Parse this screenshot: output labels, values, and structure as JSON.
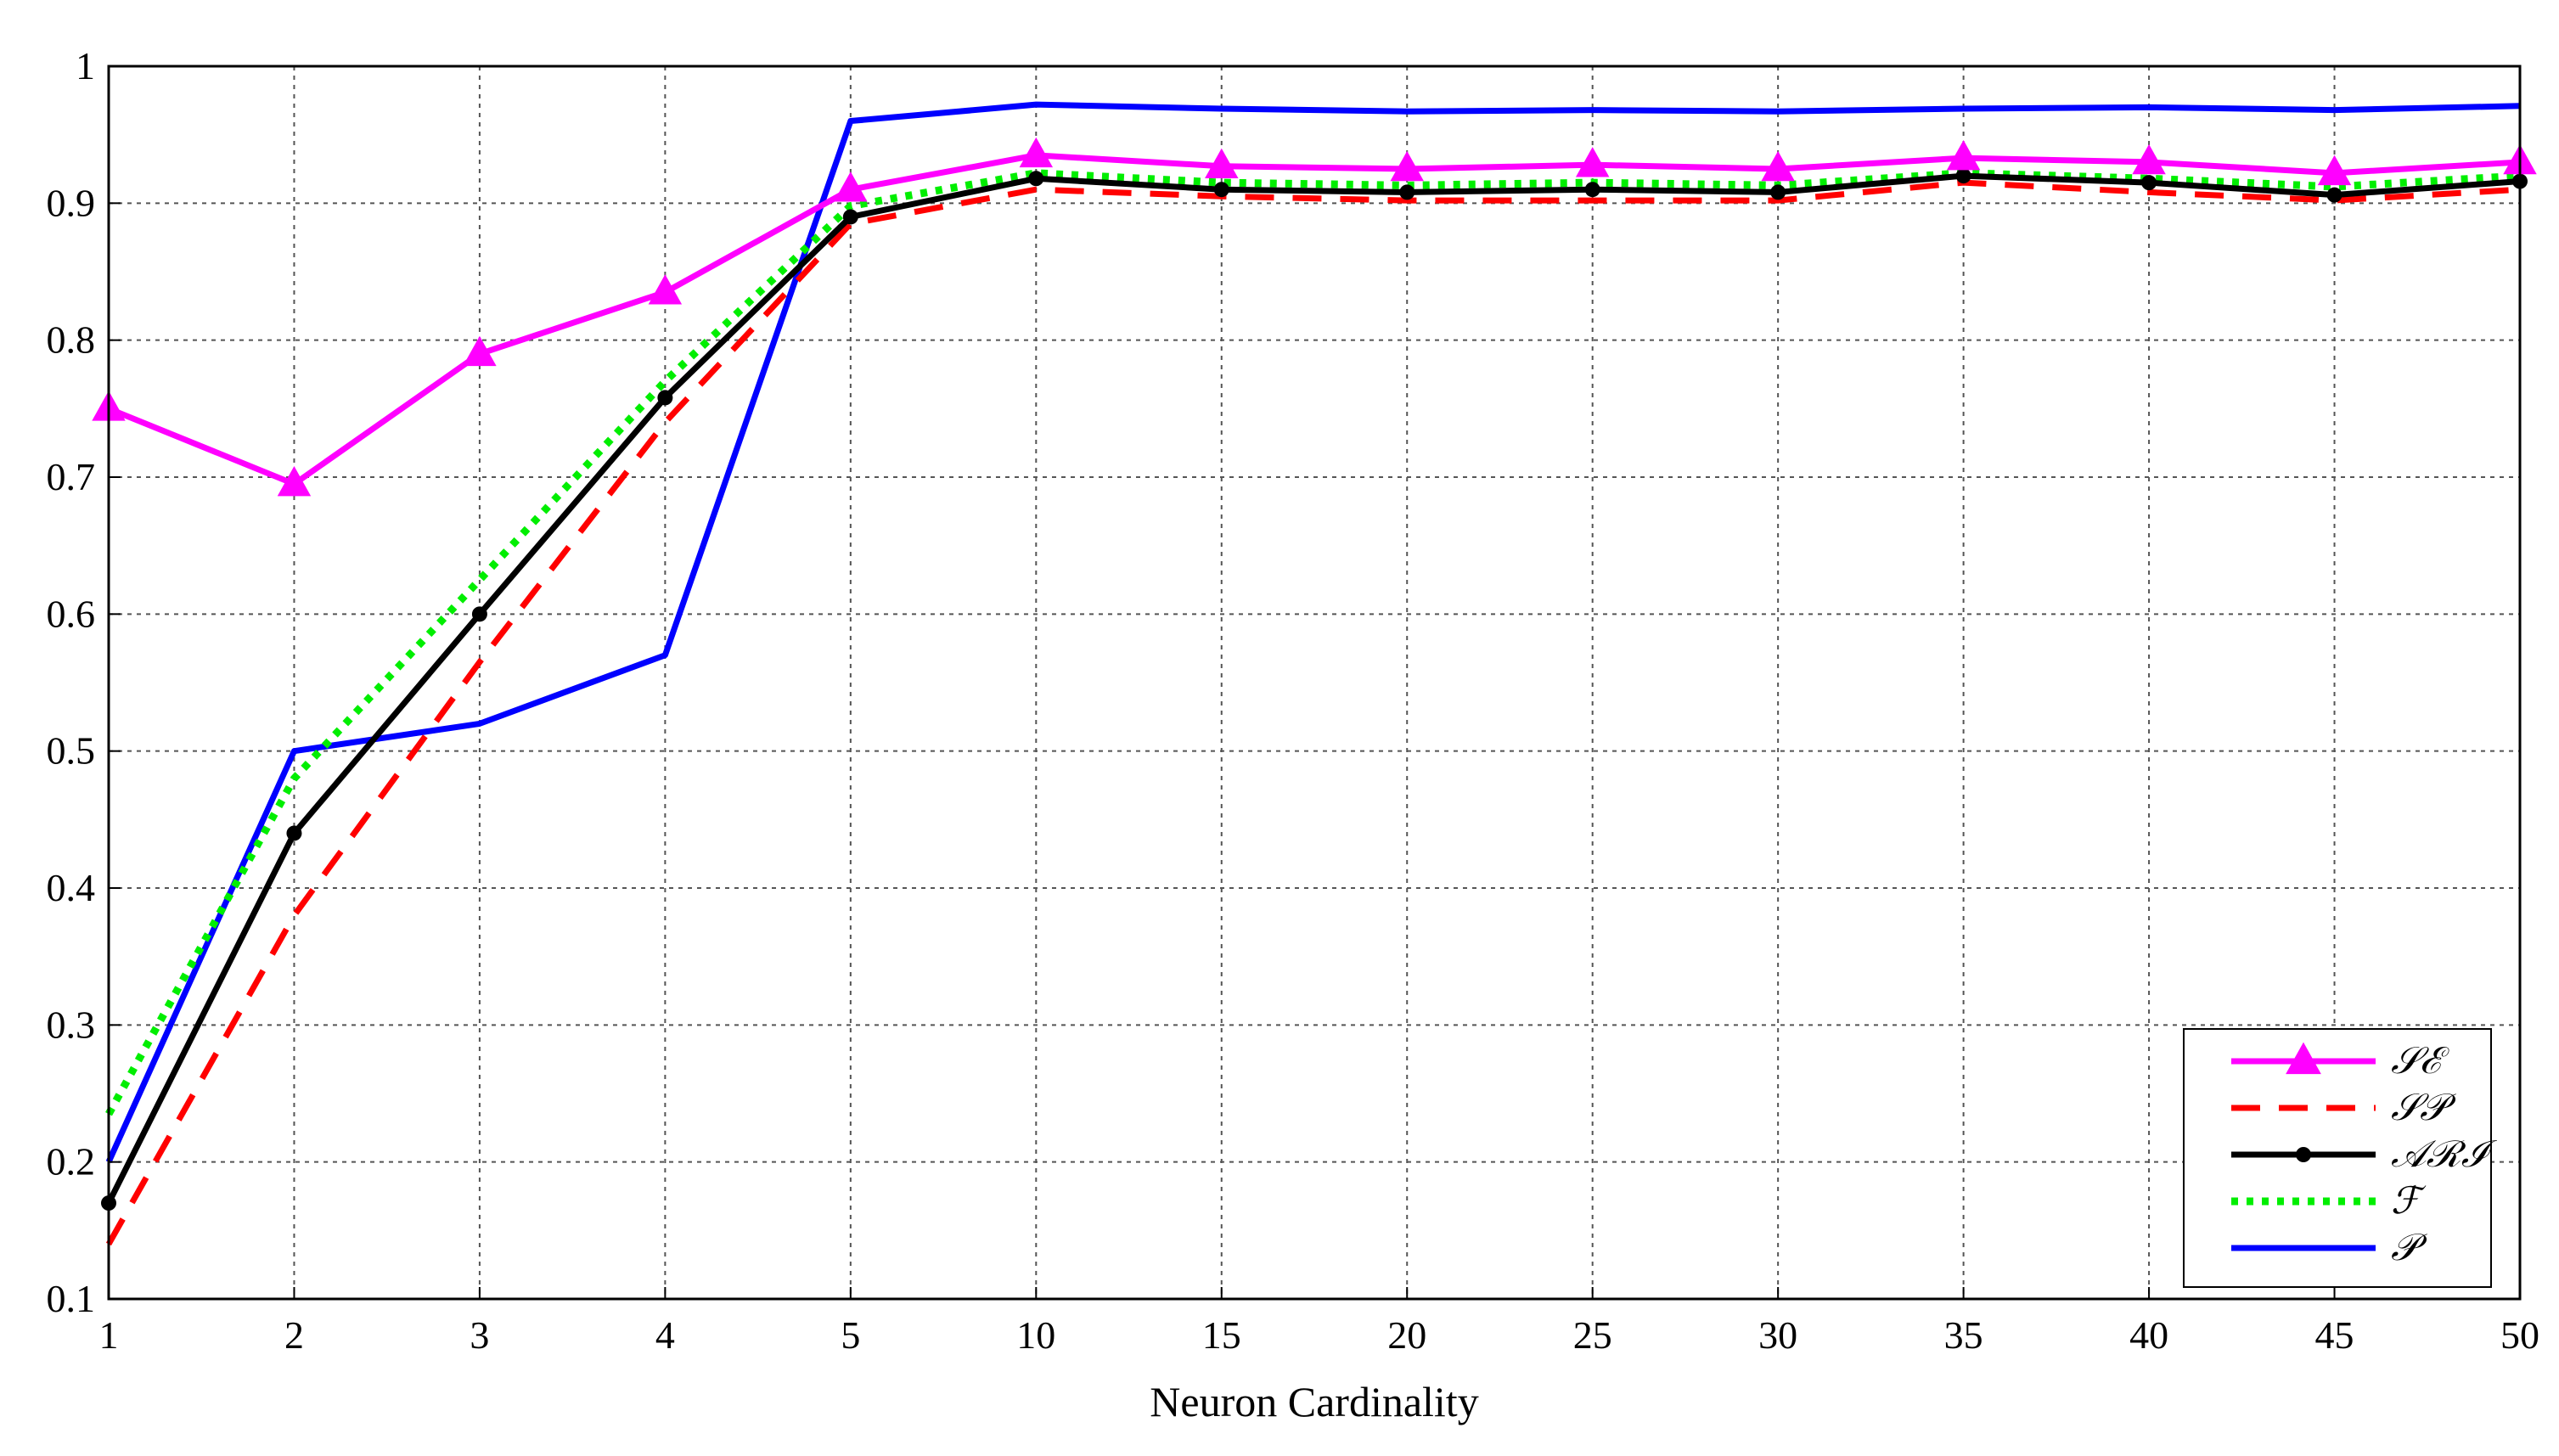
{
  "chart_data": {
    "type": "line",
    "title": "",
    "xlabel": "Neuron Cardinality",
    "ylabel": "",
    "categories": [
      "1",
      "2",
      "3",
      "4",
      "5",
      "10",
      "15",
      "20",
      "25",
      "30",
      "35",
      "40",
      "45",
      "50"
    ],
    "ylim": [
      0.1,
      1.0
    ],
    "yticks": [
      "0.1",
      "0.2",
      "0.3",
      "0.4",
      "0.5",
      "0.6",
      "0.7",
      "0.8",
      "0.9",
      "1"
    ],
    "grid": true,
    "legend_position": "bottom-right",
    "series": [
      {
        "name": "𝒮ℰ",
        "color": "#ff00ff",
        "style": "solid",
        "marker": "triangle",
        "values": [
          0.75,
          0.695,
          0.79,
          0.835,
          0.91,
          0.935,
          0.927,
          0.925,
          0.928,
          0.925,
          0.933,
          0.93,
          0.922,
          0.93
        ]
      },
      {
        "name": "𝒮𝒫",
        "color": "#ff0000",
        "style": "dashed",
        "marker": "none",
        "values": [
          0.14,
          0.38,
          0.565,
          0.74,
          0.885,
          0.91,
          0.905,
          0.902,
          0.902,
          0.902,
          0.915,
          0.908,
          0.902,
          0.91
        ]
      },
      {
        "name": "𝒜ℛℐ",
        "color": "#000000",
        "style": "solid",
        "marker": "dot",
        "values": [
          0.17,
          0.44,
          0.6,
          0.758,
          0.89,
          0.918,
          0.91,
          0.908,
          0.91,
          0.908,
          0.92,
          0.915,
          0.906,
          0.916
        ]
      },
      {
        "name": "ℱ",
        "color": "#00ee00",
        "style": "dotted",
        "marker": "none",
        "values": [
          0.235,
          0.48,
          0.625,
          0.77,
          0.898,
          0.922,
          0.915,
          0.913,
          0.915,
          0.913,
          0.922,
          0.918,
          0.912,
          0.92
        ]
      },
      {
        "name": "𝒫",
        "color": "#0000ff",
        "style": "solid",
        "marker": "none",
        "values": [
          0.2,
          0.5,
          0.52,
          0.57,
          0.96,
          0.972,
          0.969,
          0.967,
          0.968,
          0.967,
          0.969,
          0.97,
          0.968,
          0.971
        ]
      }
    ]
  }
}
